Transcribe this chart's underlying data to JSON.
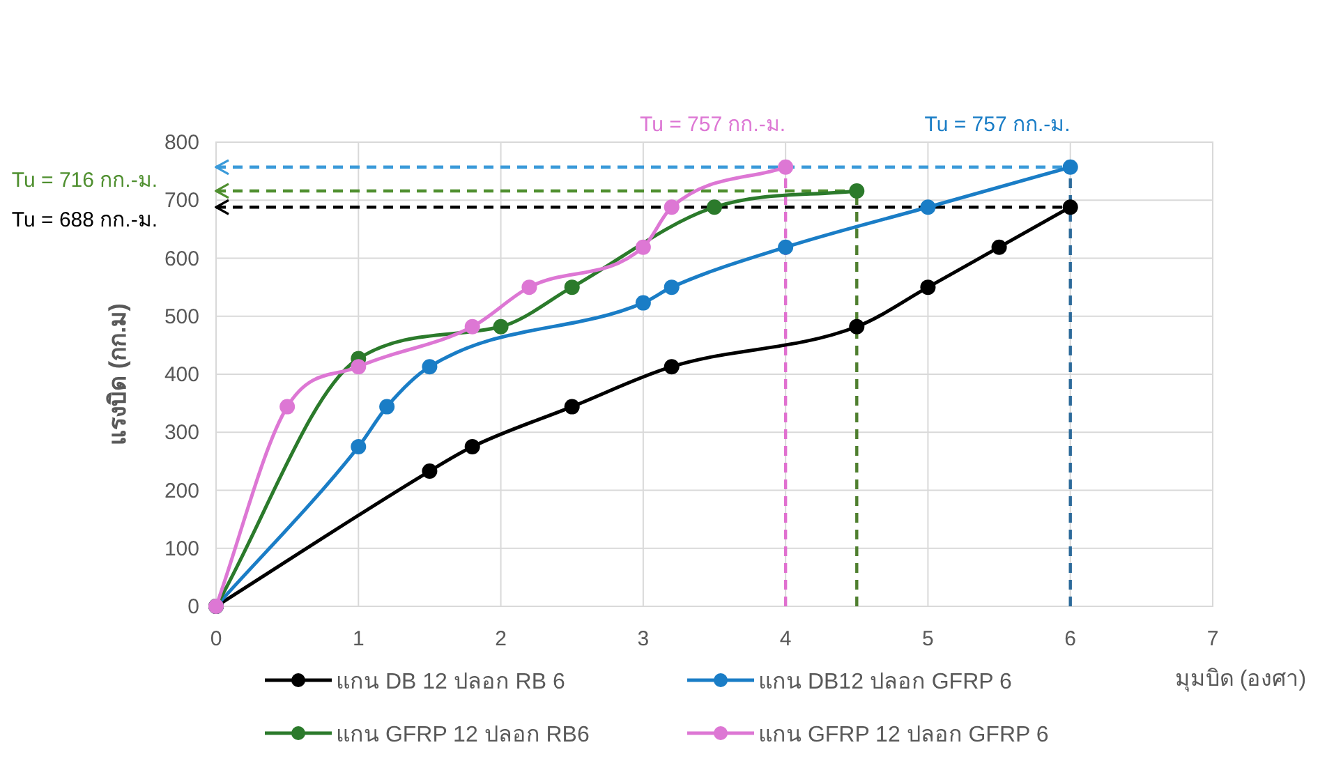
{
  "chart_data": {
    "type": "line",
    "xlabel": "มุมบิด (องศา)",
    "ylabel": "แรงบิด (กก.ม)",
    "xlim": [
      0,
      7
    ],
    "xticks": [
      0,
      1,
      2,
      3,
      4,
      5,
      6,
      7
    ],
    "ylim": [
      0,
      800
    ],
    "yticks": [
      0,
      100,
      200,
      300,
      400,
      500,
      600,
      700,
      800
    ],
    "grid": true,
    "legend": "bottom",
    "marker": "circle",
    "line_style": "solid",
    "series": [
      {
        "name": "แกน DB 12 ปลอก RB 6",
        "color": "#000000",
        "x": [
          0,
          1.5,
          1.8,
          2.5,
          3.2,
          4.5,
          5,
          5.5,
          6
        ],
        "values": [
          0,
          233,
          275,
          344,
          413,
          482,
          550,
          619,
          688
        ]
      },
      {
        "name": "แกน DB12 ปลอก  GFRP 6",
        "color": "#1a7dc6",
        "x": [
          0,
          1,
          1.2,
          1.5,
          3,
          3.2,
          4,
          5,
          6
        ],
        "values": [
          0,
          275,
          344,
          413,
          523,
          550,
          619,
          688,
          757
        ]
      },
      {
        "name": "แกน GFRP 12 ปลอก RB6",
        "color": "#2b7a2b",
        "x": [
          0,
          1,
          2,
          2.5,
          3.5,
          4.5
        ],
        "values": [
          0,
          427,
          482,
          550,
          688,
          716
        ]
      },
      {
        "name": "แกน GFRP 12 ปลอก GFRP 6",
        "color": "#dd77d4",
        "x": [
          0,
          0.5,
          1,
          1.8,
          2.2,
          3,
          3.2,
          4
        ],
        "values": [
          0,
          344,
          413,
          482,
          550,
          619,
          688,
          757
        ]
      }
    ],
    "ref_lines": [
      {
        "axis": "y",
        "value": 757,
        "color": "#3a9ad9",
        "line_style": "dashed"
      },
      {
        "axis": "y",
        "value": 716,
        "label": "Tu = 716 กก.-ม.",
        "color": "#4f8f2f",
        "line_style": "dashed"
      },
      {
        "axis": "y",
        "value": 688,
        "label": "Tu = 688 กก.-ม.",
        "color": "#000000",
        "line_style": "dashed"
      },
      {
        "axis": "x",
        "value": 4,
        "color": "#e070d0",
        "line_style": "dashed"
      },
      {
        "axis": "x",
        "value": 4.5,
        "color": "#4f7f2f",
        "line_style": "dashed"
      },
      {
        "axis": "x",
        "value": 6,
        "color": "#2c6a9a",
        "line_style": "dashed"
      }
    ],
    "annotations": [
      {
        "text": "Tu = 757 กก.-ม.",
        "x": 4,
        "y": 757
      },
      {
        "text": "Tu = 757 กก.-ม.",
        "x": 6,
        "y": 757
      }
    ]
  }
}
